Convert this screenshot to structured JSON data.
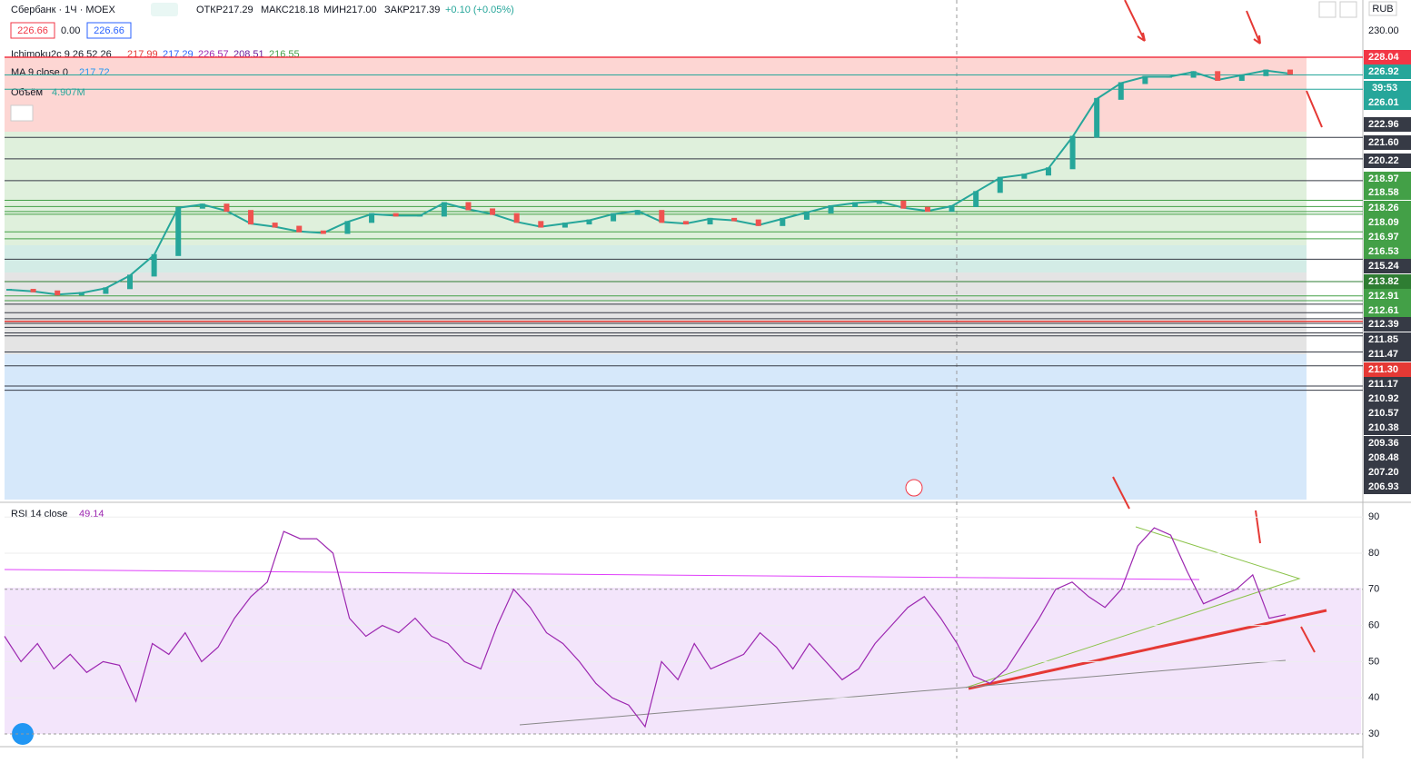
{
  "header": {
    "symbol": "Сбербанк · 1Ч · MOEX",
    "ohlc_open": "ОТКР217.29",
    "ohlc_high": "МАКС218.18",
    "ohlc_low": "МИН217.00",
    "ohlc_close": "ЗАКР217.39",
    "change": "+0.10 (+0.05%)",
    "currency": "RUB"
  },
  "legend": {
    "box1": "226.66",
    "mid": "0.00",
    "box2": "226.66",
    "ichimoku": "Ichimoku2c 9 26 52 26",
    "ichimoku_values": [
      "217.99",
      "217.29",
      "226.57",
      "208.51",
      "216.55"
    ],
    "ma": "MA 9 close 0",
    "ma_value": "217.72",
    "volume": "Объём",
    "volume_value": "4.907M"
  },
  "price_axis": {
    "levels": [
      {
        "price": {
          "value": 230,
          "label": "230.00"
        },
        "color": "none"
      },
      {
        "price": 228.04,
        "color": "#f23645"
      },
      {
        "price": 226.92,
        "color": "#26a69a"
      },
      {
        "price": 226.01,
        "color": "#26a69a"
      },
      {
        "price": 222.96,
        "color": "#363a45"
      },
      {
        "price": {
          "value": 221.6,
          "label": "221.60"
        },
        "color": "#363a45"
      },
      {
        "price": 220.22,
        "color": "#363a45"
      },
      {
        "price": 218.97,
        "color": "#43a047"
      },
      {
        "price": 218.58,
        "color": "#43a047"
      },
      {
        "price": 218.26,
        "color": "#43a047"
      },
      {
        "price": 218.09,
        "color": "#43a047"
      },
      {
        "price": 216.97,
        "color": "#43a047"
      },
      {
        "price": 216.53,
        "color": "#43a047"
      },
      {
        "price": 215.24,
        "color": "#363a45"
      },
      {
        "price": 213.82,
        "color": "#2e7d32"
      },
      {
        "price": 212.91,
        "color": "#43a047"
      },
      {
        "price": 212.61,
        "color": "#43a047"
      },
      {
        "price": 212.39,
        "color": "#363a45"
      },
      {
        "price": 211.85,
        "color": "#363a45"
      },
      {
        "price": 211.47,
        "color": "#363a45"
      },
      {
        "price": {
          "value": 211.3,
          "label": "211.30"
        },
        "color": "#e53935"
      },
      {
        "price": 211.17,
        "color": "#363a45"
      },
      {
        "price": 210.92,
        "color": "#363a45"
      },
      {
        "price": 210.57,
        "color": "#363a45"
      },
      {
        "price": 210.38,
        "color": "#363a45"
      },
      {
        "price": 209.36,
        "color": "#363a45"
      },
      {
        "price": 208.48,
        "color": "#363a45"
      },
      {
        "price": {
          "value": 207.2,
          "label": "207.20"
        },
        "color": "#363a45"
      },
      {
        "price": 206.93,
        "color": "#363a45"
      }
    ],
    "countdown": "39:53"
  },
  "close": [
    213.3,
    213.2,
    213.0,
    213.1,
    213.4,
    214.2,
    215.5,
    218.5,
    218.7,
    218.3,
    217.5,
    217.3,
    217.0,
    216.9,
    217.6,
    218.1,
    218.0,
    218.0,
    218.8,
    218.4,
    218.1,
    217.6,
    217.3,
    217.5,
    217.7,
    218.1,
    218.3,
    217.6,
    217.5,
    217.8,
    217.7,
    217.4,
    217.8,
    218.2,
    218.6,
    218.8,
    218.9,
    218.5,
    218.3,
    218.6,
    219.5,
    220.4,
    220.6,
    221.0,
    223.0,
    225.4,
    226.4,
    226.8,
    226.8,
    227.1,
    226.6,
    226.9,
    227.2,
    227.0
  ],
  "rsi": {
    "label": "RSI 14 close",
    "value": "49.14",
    "ticks": [
      90,
      80,
      70,
      60,
      50,
      40,
      30
    ],
    "values": [
      57,
      50,
      55,
      48,
      52,
      47,
      50,
      49,
      39,
      55,
      52,
      58,
      50,
      54,
      62,
      68,
      72,
      86,
      84,
      84,
      80,
      62,
      57,
      60,
      58,
      62,
      57,
      55,
      50,
      48,
      60,
      70,
      65,
      58,
      55,
      50,
      44,
      40,
      38,
      32,
      50,
      45,
      55,
      48,
      50,
      52,
      58,
      54,
      48,
      55,
      50,
      45,
      48,
      55,
      60,
      65,
      68,
      62,
      55,
      46,
      44,
      48,
      55,
      62,
      70,
      72,
      68,
      65,
      70,
      82,
      87,
      85,
      75,
      66,
      68,
      70,
      74,
      62,
      63
    ]
  }
}
